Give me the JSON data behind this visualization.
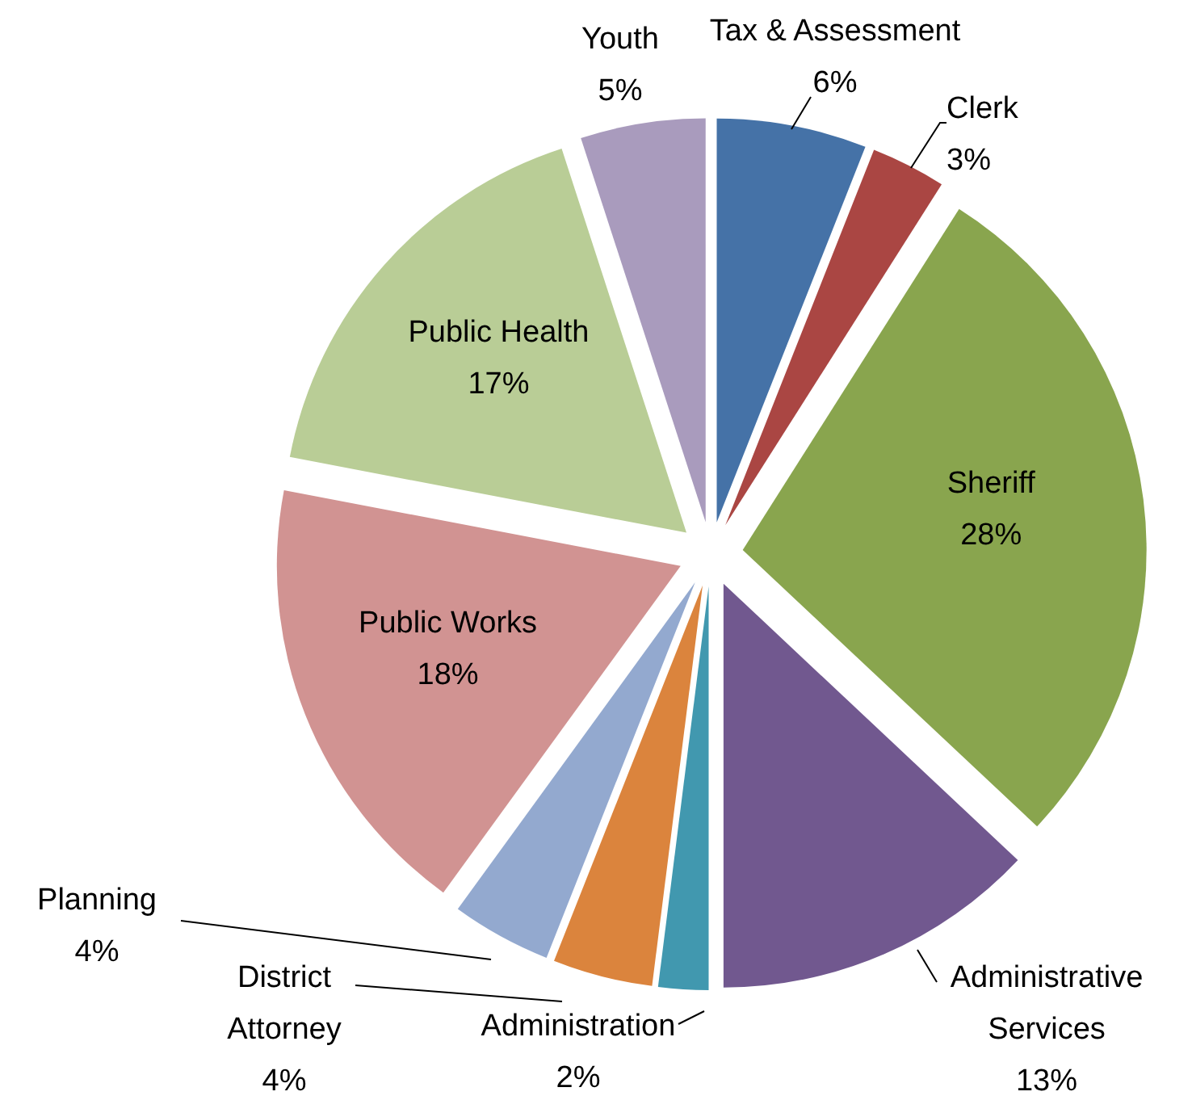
{
  "chart_data": {
    "type": "pie",
    "categories": [
      "Tax & Assessment",
      "Clerk",
      "Sheriff",
      "Administrative Services",
      "Administration",
      "District Attorney",
      "Planning",
      "Public Works",
      "Public Health",
      "Youth"
    ],
    "values": [
      6,
      3,
      28,
      13,
      2,
      4,
      4,
      18,
      17,
      5
    ],
    "colors": [
      "#4572a7",
      "#aa4643",
      "#89a54e",
      "#71588f",
      "#4198af",
      "#db843d",
      "#93a9cf",
      "#d19392",
      "#b9cd96",
      "#a99bbd"
    ],
    "value_labels": [
      "6%",
      "3%",
      "28%",
      "13%",
      "2%",
      "4%",
      "4%",
      "18%",
      "17%",
      "5%"
    ]
  }
}
